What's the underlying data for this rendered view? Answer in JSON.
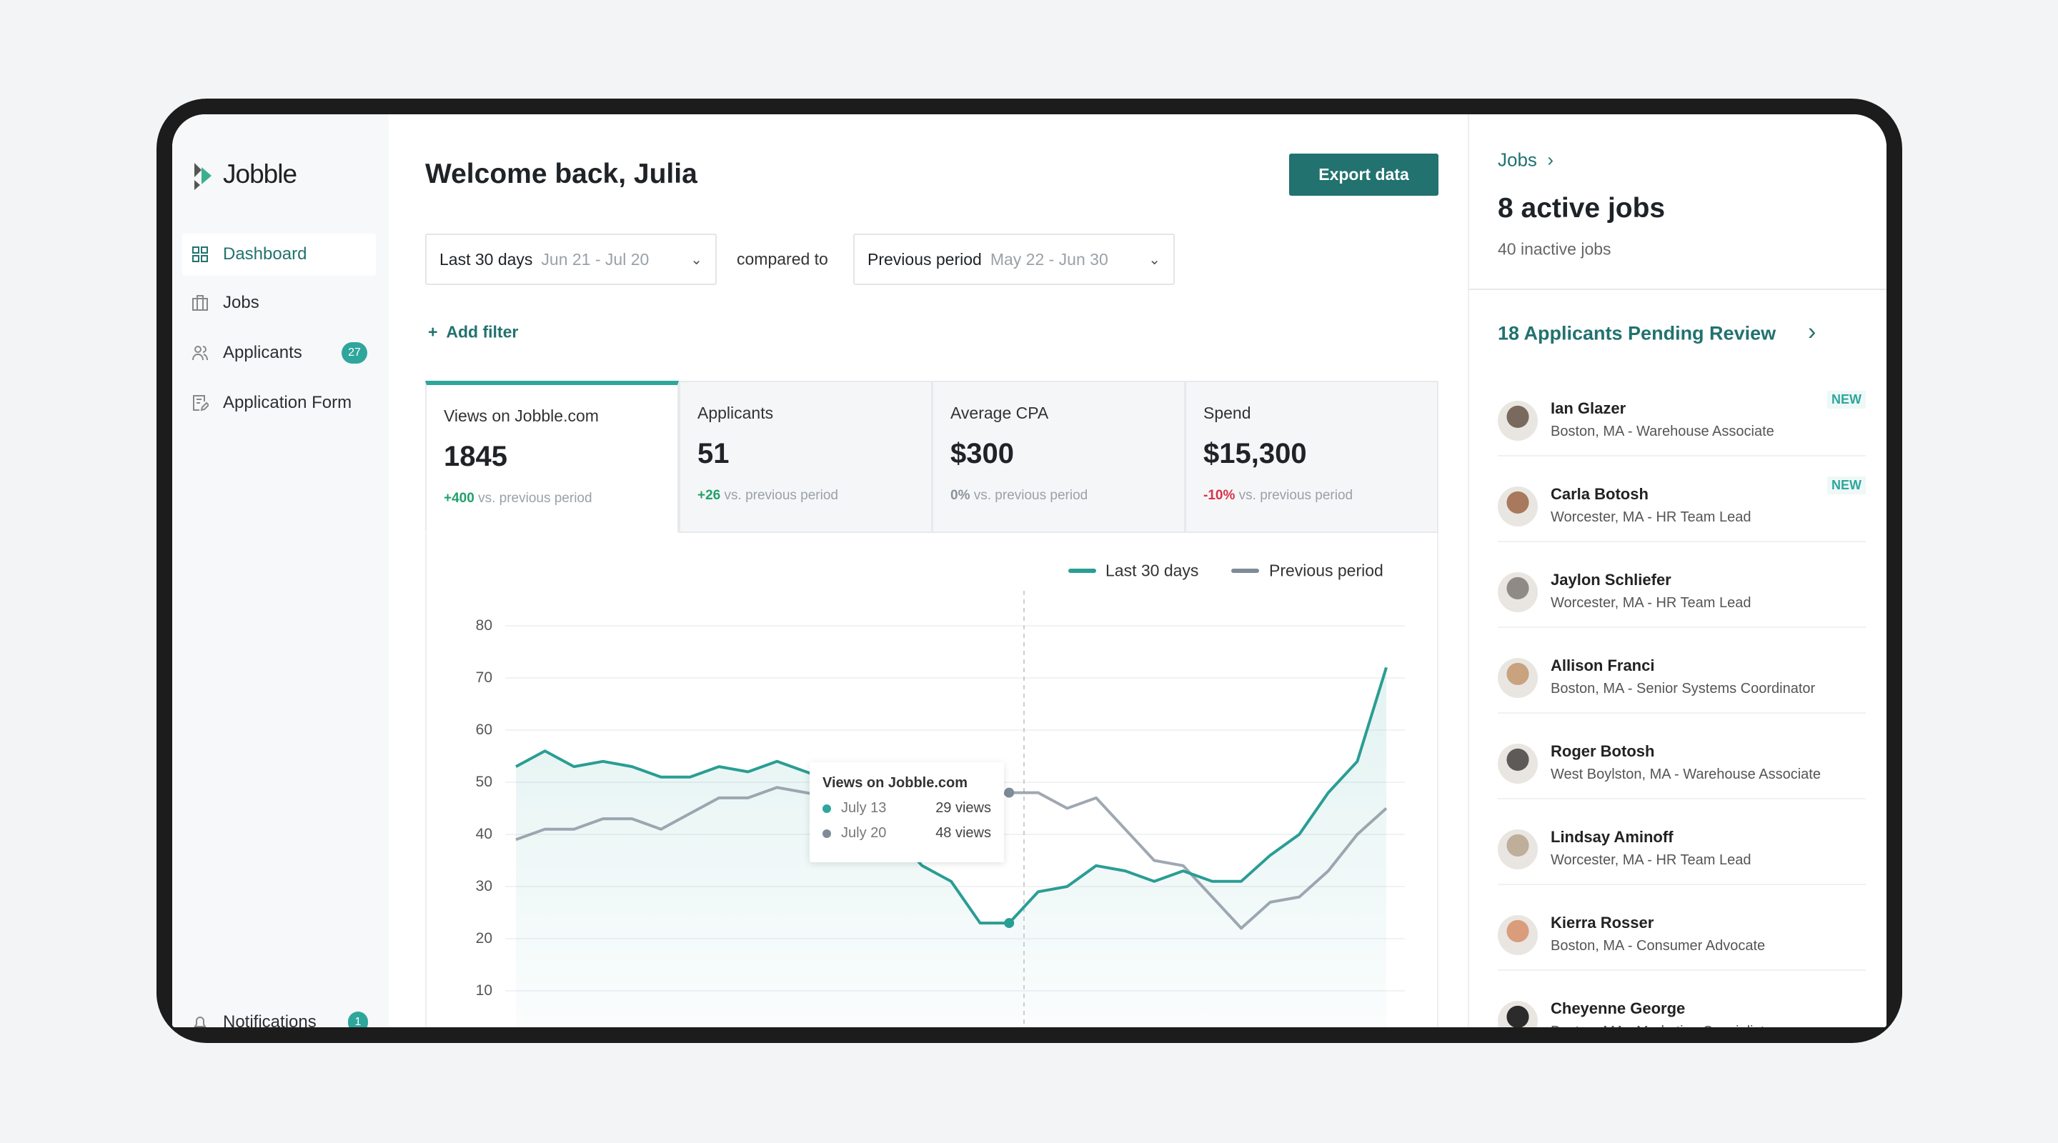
{
  "app": {
    "logo_text": "Jobble"
  },
  "sidebar": {
    "items": [
      {
        "label": "Dashboard",
        "icon": "dashboard-grid-icon",
        "active": true
      },
      {
        "label": "Jobs",
        "icon": "briefcase-icon"
      },
      {
        "label": "Applicants",
        "icon": "users-icon",
        "badge": "27"
      },
      {
        "label": "Application Form",
        "icon": "form-edit-icon"
      }
    ],
    "notifications": {
      "label": "Notifications",
      "badge": "1"
    }
  },
  "header": {
    "title": "Welcome back, Julia",
    "export_label": "Export data"
  },
  "filters": {
    "range": {
      "label": "Last 30 days",
      "dates": "Jun 21 - Jul 20"
    },
    "compared_to": "compared to",
    "compare": {
      "label": "Previous period",
      "dates": "May 22 - Jun 30"
    },
    "add_filter": "Add filter"
  },
  "kpis": [
    {
      "label": "Views on Jobble.com",
      "value": "1845",
      "delta": "+400",
      "delta_suffix": "vs. previous period",
      "trend": "pos"
    },
    {
      "label": "Applicants",
      "value": "51",
      "delta": "+26",
      "delta_suffix": "vs. previous period",
      "trend": "pos"
    },
    {
      "label": "Average CPA",
      "value": "$300",
      "delta": "0%",
      "delta_suffix": "vs. previous period",
      "trend": "zero"
    },
    {
      "label": "Spend",
      "value": "$15,300",
      "delta": "-10%",
      "delta_suffix": "vs. previous period",
      "trend": "neg"
    }
  ],
  "chart_data": {
    "type": "line",
    "ylim": [
      10,
      80
    ],
    "yticks": [
      "80",
      "70",
      "60",
      "50",
      "40",
      "30",
      "20",
      "10"
    ],
    "grid": true,
    "legend_placement": "top-right",
    "series": [
      {
        "name": "Last 30 days",
        "color": "#2a9d94",
        "values": [
          53,
          56,
          53,
          54,
          53,
          51,
          51,
          53,
          52,
          54,
          52,
          50,
          45,
          40,
          34,
          31,
          23,
          23,
          29,
          30,
          34,
          33,
          31,
          33,
          31,
          31,
          36,
          40,
          48,
          54,
          72
        ]
      },
      {
        "name": "Previous period",
        "color": "#7f8b98",
        "values": [
          39,
          41,
          41,
          43,
          43,
          41,
          44,
          47,
          47,
          49,
          48,
          47,
          46,
          46,
          46,
          47,
          47,
          48,
          48,
          45,
          47,
          41,
          35,
          34,
          28,
          22,
          27,
          28,
          33,
          40,
          45
        ]
      }
    ],
    "tooltip": {
      "title": "Views on Jobble.com",
      "rows": [
        {
          "date": "July 13",
          "value": "29 views"
        },
        {
          "date": "July 20",
          "value": "48 views"
        }
      ]
    }
  },
  "right": {
    "jobs_link": "Jobs",
    "active_jobs": "8 active jobs",
    "inactive_jobs": "40 inactive jobs",
    "pending_title": "18 Applicants Pending Review",
    "new_label": "NEW",
    "applicants": [
      {
        "name": "Ian Glazer",
        "sub": "Boston, MA - Warehouse Associate",
        "new": true
      },
      {
        "name": "Carla Botosh",
        "sub": "Worcester, MA - HR Team Lead",
        "new": true
      },
      {
        "name": "Jaylon Schliefer",
        "sub": "Worcester, MA - HR Team Lead"
      },
      {
        "name": "Allison Franci",
        "sub": "Boston, MA - Senior Systems Coordinator"
      },
      {
        "name": "Roger Botosh",
        "sub": "West Boylston, MA - Warehouse Associate"
      },
      {
        "name": "Lindsay Aminoff",
        "sub": "Worcester, MA - HR Team Lead"
      },
      {
        "name": "Kierra Rosser",
        "sub": "Boston, MA - Consumer Advocate"
      },
      {
        "name": "Cheyenne George",
        "sub": "Boston, MA - Marketing Specialist"
      }
    ]
  },
  "colors": {
    "accent": "#22726f",
    "teal": "#2fa69c",
    "negative": "#d6334a",
    "positive": "#22a06b"
  }
}
